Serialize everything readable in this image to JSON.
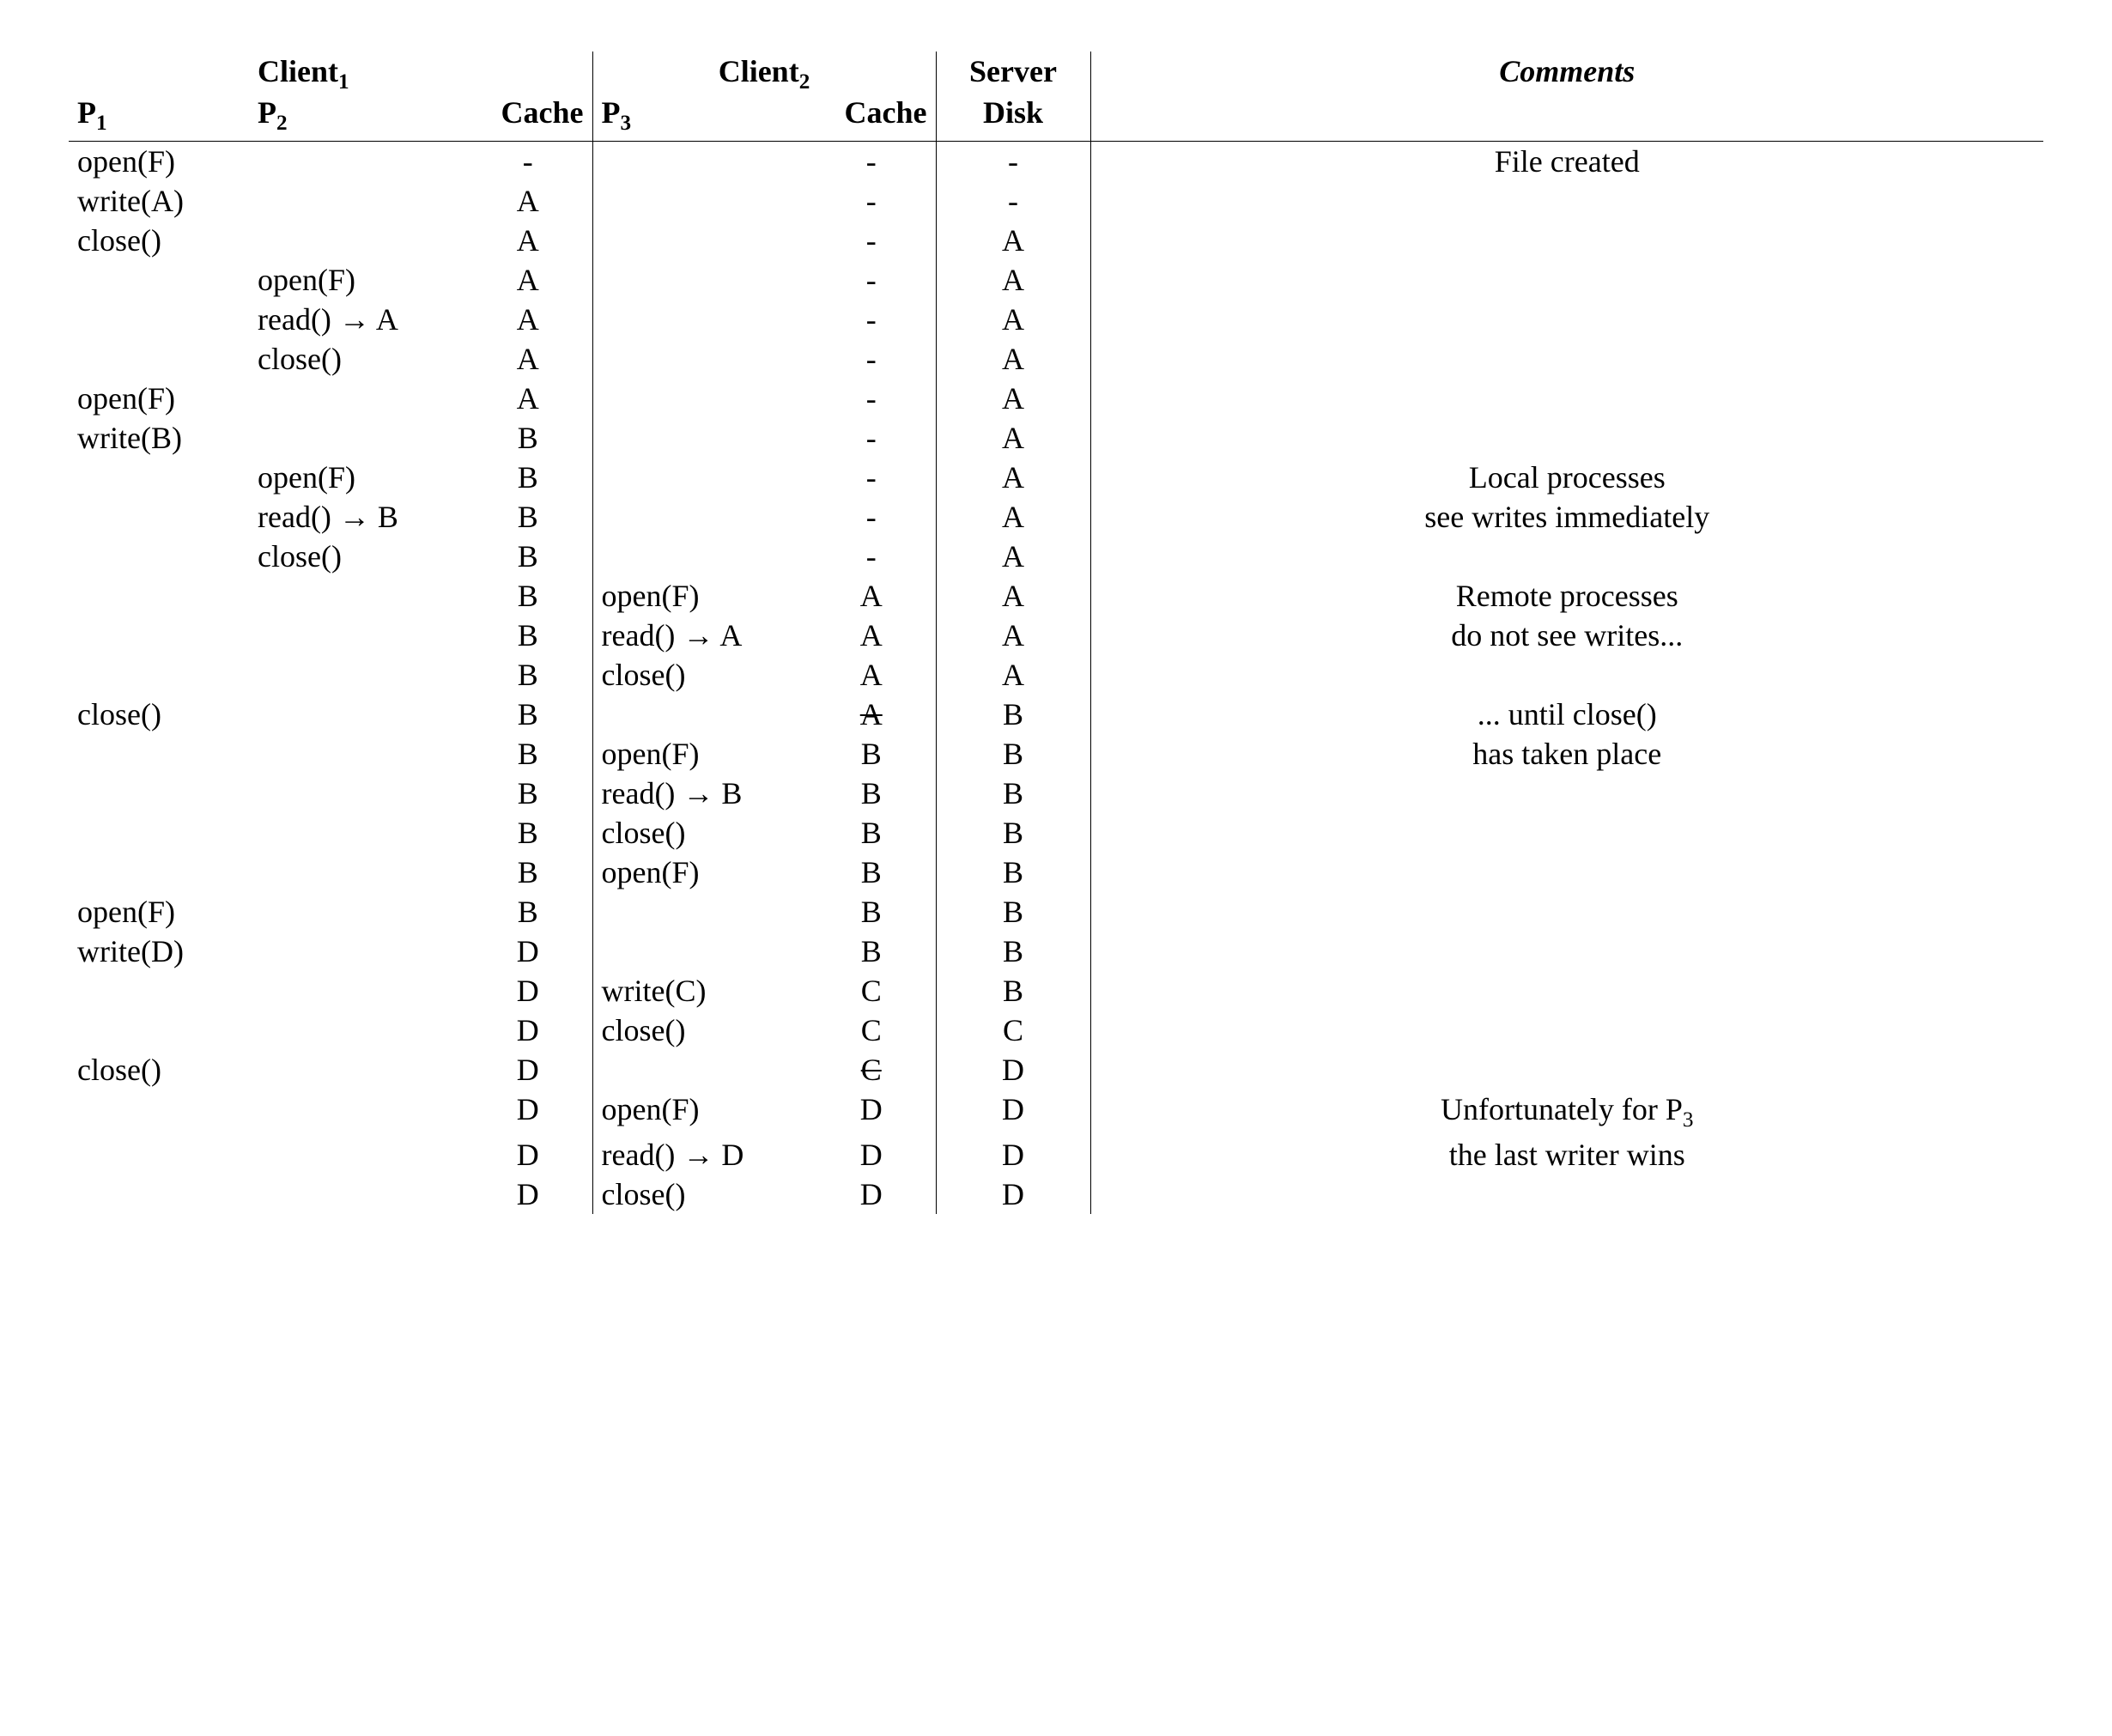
{
  "colors": {
    "text": "#000000",
    "background": "#ffffff",
    "rule": "#000000"
  },
  "typography": {
    "font_family": "Palatino, 'Palatino Linotype', 'Book Antiqua', Georgia, serif",
    "base_fontsize_pt": 27,
    "header_weight": "bold",
    "comments_style": "italic"
  },
  "table": {
    "type": "table",
    "header_group_row": {
      "client1": "Client",
      "client1_sub": "1",
      "client2": "Client",
      "client2_sub": "2",
      "server": "Server",
      "comments": "Comments"
    },
    "header_cols_row": {
      "p1": "P",
      "p1_sub": "1",
      "p2": "P",
      "p2_sub": "2",
      "cache1": "Cache",
      "p3": "P",
      "p3_sub": "3",
      "cache2": "Cache",
      "disk": "Disk"
    },
    "ops": {
      "openF": "open(F)",
      "writeA": "write(A)",
      "writeB": "write(B)",
      "writeC": "write(C)",
      "writeD": "write(D)",
      "close": "close()",
      "readA": "read() → A",
      "readB": "read() → B",
      "readD": "read() → D"
    },
    "comments": {
      "file_created": "File created",
      "local1": "Local processes",
      "local2": "see writes immediately",
      "remote1": "Remote processes",
      "remote2": "do not see writes...",
      "until1": "... until close()",
      "until2": "has taken place",
      "unfort1": "Unfortunately for P",
      "unfort1_sub": "3",
      "unfort2": "the last writer wins"
    },
    "rows": [
      {
        "p1": "openF",
        "p2": "",
        "c1": "-",
        "p3": "",
        "c2": "-",
        "disk": "-",
        "cmt": "file_created"
      },
      {
        "p1": "writeA",
        "p2": "",
        "c1": "A",
        "p3": "",
        "c2": "-",
        "disk": "-",
        "cmt": ""
      },
      {
        "p1": "close",
        "p2": "",
        "c1": "A",
        "p3": "",
        "c2": "-",
        "disk": "A",
        "cmt": ""
      },
      {
        "p1": "",
        "p2": "openF",
        "c1": "A",
        "p3": "",
        "c2": "-",
        "disk": "A",
        "cmt": ""
      },
      {
        "p1": "",
        "p2": "readA",
        "c1": "A",
        "p3": "",
        "c2": "-",
        "disk": "A",
        "cmt": ""
      },
      {
        "p1": "",
        "p2": "close",
        "c1": "A",
        "p3": "",
        "c2": "-",
        "disk": "A",
        "cmt": ""
      },
      {
        "p1": "openF",
        "p2": "",
        "c1": "A",
        "p3": "",
        "c2": "-",
        "disk": "A",
        "cmt": ""
      },
      {
        "p1": "writeB",
        "p2": "",
        "c1": "B",
        "p3": "",
        "c2": "-",
        "disk": "A",
        "cmt": ""
      },
      {
        "p1": "",
        "p2": "openF",
        "c1": "B",
        "p3": "",
        "c2": "-",
        "disk": "A",
        "cmt": "local1"
      },
      {
        "p1": "",
        "p2": "readB",
        "c1": "B",
        "p3": "",
        "c2": "-",
        "disk": "A",
        "cmt": "local2"
      },
      {
        "p1": "",
        "p2": "close",
        "c1": "B",
        "p3": "",
        "c2": "-",
        "disk": "A",
        "cmt": ""
      },
      {
        "p1": "",
        "p2": "",
        "c1": "B",
        "p3": "openF",
        "c2": "A",
        "disk": "A",
        "cmt": "remote1"
      },
      {
        "p1": "",
        "p2": "",
        "c1": "B",
        "p3": "readA",
        "c2": "A",
        "disk": "A",
        "cmt": "remote2"
      },
      {
        "p1": "",
        "p2": "",
        "c1": "B",
        "p3": "close",
        "c2": "A",
        "disk": "A",
        "cmt": ""
      },
      {
        "p1": "close",
        "p2": "",
        "c1": "B",
        "p3": "",
        "c2": "A",
        "c2_strike": true,
        "disk": "B",
        "cmt": "until1"
      },
      {
        "p1": "",
        "p2": "",
        "c1": "B",
        "p3": "openF",
        "c2": "B",
        "disk": "B",
        "cmt": "until2"
      },
      {
        "p1": "",
        "p2": "",
        "c1": "B",
        "p3": "readB",
        "c2": "B",
        "disk": "B",
        "cmt": ""
      },
      {
        "p1": "",
        "p2": "",
        "c1": "B",
        "p3": "close",
        "c2": "B",
        "disk": "B",
        "cmt": ""
      },
      {
        "p1": "",
        "p2": "",
        "c1": "B",
        "p3": "openF",
        "c2": "B",
        "disk": "B",
        "cmt": ""
      },
      {
        "p1": "openF",
        "p2": "",
        "c1": "B",
        "p3": "",
        "c2": "B",
        "disk": "B",
        "cmt": ""
      },
      {
        "p1": "writeD",
        "p2": "",
        "c1": "D",
        "p3": "",
        "c2": "B",
        "disk": "B",
        "cmt": ""
      },
      {
        "p1": "",
        "p2": "",
        "c1": "D",
        "p3": "writeC",
        "c2": "C",
        "disk": "B",
        "cmt": ""
      },
      {
        "p1": "",
        "p2": "",
        "c1": "D",
        "p3": "close",
        "c2": "C",
        "disk": "C",
        "cmt": ""
      },
      {
        "p1": "close",
        "p2": "",
        "c1": "D",
        "p3": "",
        "c2": "C",
        "c2_strike": true,
        "disk": "D",
        "cmt": ""
      },
      {
        "p1": "",
        "p2": "",
        "c1": "D",
        "p3": "openF",
        "c2": "D",
        "disk": "D",
        "cmt": "unfort1"
      },
      {
        "p1": "",
        "p2": "",
        "c1": "D",
        "p3": "readD",
        "c2": "D",
        "disk": "D",
        "cmt": "unfort2"
      },
      {
        "p1": "",
        "p2": "",
        "c1": "D",
        "p3": "close",
        "c2": "D",
        "disk": "D",
        "cmt": ""
      }
    ]
  }
}
